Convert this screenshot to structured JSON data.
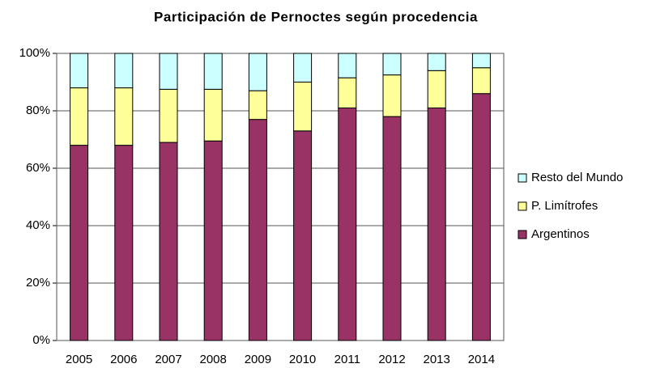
{
  "chart_data": {
    "type": "stacked_bar",
    "title": "Participación de Pernoctes según procedencia",
    "categories": [
      "2005",
      "2006",
      "2007",
      "2008",
      "2009",
      "2010",
      "2011",
      "2012",
      "2013",
      "2014"
    ],
    "series": [
      {
        "name": "Argentinos",
        "color": "#993366",
        "values": [
          68,
          68,
          69,
          69.5,
          77,
          73,
          81,
          78,
          81,
          86
        ]
      },
      {
        "name": "P. Limítrofes",
        "color": "#ffff99",
        "values": [
          20,
          20,
          18.5,
          18,
          10,
          17,
          10.5,
          14.5,
          13,
          9
        ]
      },
      {
        "name": "Resto del Mundo",
        "color": "#ccffff",
        "values": [
          12,
          12,
          12.5,
          12.5,
          13,
          10,
          8.5,
          7.5,
          6,
          5
        ]
      }
    ],
    "ylim": [
      0,
      100
    ],
    "yticks": [
      {
        "value": 0,
        "label": "0%"
      },
      {
        "value": 20,
        "label": "20%"
      },
      {
        "value": 40,
        "label": "40%"
      },
      {
        "value": 60,
        "label": "60%"
      },
      {
        "value": 80,
        "label": "80%"
      },
      {
        "value": 100,
        "label": "100%"
      }
    ],
    "grid": true,
    "legend": "right"
  }
}
